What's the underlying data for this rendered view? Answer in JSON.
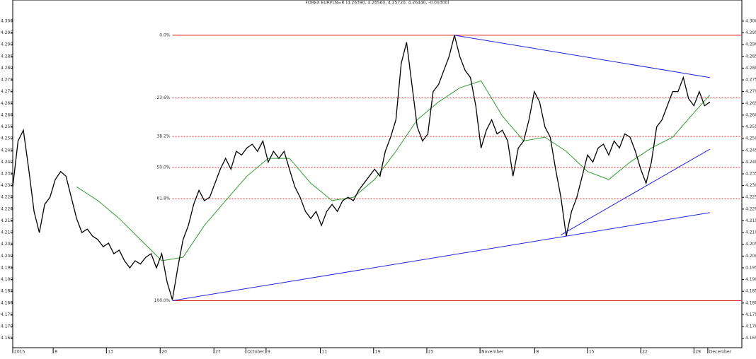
{
  "chart_data": {
    "type": "line",
    "title": "FOREX EURPLN=R (4.26390, 4.26560, 4.25720, 4.26440, -0.00300)",
    "xlim": [
      0,
      137
    ],
    "xticks": [
      {
        "value": 0,
        "label": "2015"
      },
      {
        "value": 7.6,
        "label": "8"
      },
      {
        "value": 17.6,
        "label": "13"
      },
      {
        "value": 27.7,
        "label": "20"
      },
      {
        "value": 37.8,
        "label": "27"
      },
      {
        "value": 43.8,
        "label": "October"
      },
      {
        "value": 47.6,
        "label": "9"
      },
      {
        "value": 57.8,
        "label": "11"
      },
      {
        "value": 67.8,
        "label": "19"
      },
      {
        "value": 77.8,
        "label": "25"
      },
      {
        "value": 87.8,
        "label": "November"
      },
      {
        "value": 98.1,
        "label": "8"
      },
      {
        "value": 108,
        "label": "15"
      },
      {
        "value": 118,
        "label": "22"
      },
      {
        "value": 128,
        "label": "29"
      },
      {
        "value": 130.6,
        "label": "December"
      }
    ],
    "ylim": [
      4.161,
      4.309
    ],
    "yticks": [
      {
        "value": 4.165,
        "label": "4.165"
      },
      {
        "value": 4.17,
        "label": "4.170"
      },
      {
        "value": 4.175,
        "label": "4.175"
      },
      {
        "value": 4.18,
        "label": "4.180"
      },
      {
        "value": 4.185,
        "label": "4.185"
      },
      {
        "value": 4.19,
        "label": "4.190"
      },
      {
        "value": 4.195,
        "label": "4.195"
      },
      {
        "value": 4.2,
        "label": "4.200"
      },
      {
        "value": 4.205,
        "label": "4.205"
      },
      {
        "value": 4.21,
        "label": "4.210"
      },
      {
        "value": 4.215,
        "label": "4.215"
      },
      {
        "value": 4.22,
        "label": "4.220"
      },
      {
        "value": 4.225,
        "label": "4.225"
      },
      {
        "value": 4.23,
        "label": "4.230"
      },
      {
        "value": 4.235,
        "label": "4.235"
      },
      {
        "value": 4.24,
        "label": "4.240"
      },
      {
        "value": 4.245,
        "label": "4.245"
      },
      {
        "value": 4.25,
        "label": "4.250"
      },
      {
        "value": 4.255,
        "label": "4.255"
      },
      {
        "value": 4.26,
        "label": "4.260"
      },
      {
        "value": 4.265,
        "label": "4.265"
      },
      {
        "value": 4.27,
        "label": "4.270"
      },
      {
        "value": 4.275,
        "label": "4.275"
      },
      {
        "value": 4.28,
        "label": "4.280"
      },
      {
        "value": 4.285,
        "label": "4.285"
      },
      {
        "value": 4.29,
        "label": "4.290"
      },
      {
        "value": 4.295,
        "label": "4.295"
      },
      {
        "value": 4.3,
        "label": "4.300"
      }
    ],
    "series": [
      {
        "name": "EURPLN=R",
        "color": "#000000",
        "values": [
          4.2295,
          4.249,
          4.2536,
          4.237,
          4.219,
          4.21,
          4.222,
          4.225,
          4.2326,
          4.236,
          4.234,
          4.225,
          4.216,
          4.21,
          4.2115,
          4.2085,
          4.207,
          4.204,
          4.2055,
          4.201,
          4.2025,
          4.198,
          4.195,
          4.198,
          4.1966,
          4.1995,
          4.201,
          4.195,
          4.201,
          4.189,
          4.1814,
          4.195,
          4.207,
          4.213,
          4.222,
          4.228,
          4.2236,
          4.225,
          4.231,
          4.237,
          4.2416,
          4.237,
          4.2446,
          4.243,
          4.246,
          4.2476,
          4.2446,
          4.249,
          4.24,
          4.2446,
          4.2416,
          4.2446,
          4.237,
          4.2295,
          4.225,
          4.219,
          4.216,
          4.219,
          4.213,
          4.219,
          4.222,
          4.219,
          4.2236,
          4.225,
          4.2236,
          4.228,
          4.231,
          4.234,
          4.237,
          4.234,
          4.2446,
          4.2506,
          4.258,
          4.282,
          4.291,
          4.273,
          4.255,
          4.249,
          4.252,
          4.27,
          4.273,
          4.279,
          4.285,
          4.294,
          4.285,
          4.279,
          4.276,
          4.264,
          4.246,
          4.2536,
          4.258,
          4.252,
          4.2536,
          4.249,
          4.234,
          4.246,
          4.249,
          4.258,
          4.27,
          4.2656,
          4.255,
          4.2506,
          4.237,
          4.225,
          4.2085,
          4.219,
          4.225,
          4.234,
          4.243,
          4.24,
          4.246,
          4.2476,
          4.243,
          4.249,
          4.246,
          4.252,
          4.2506,
          4.2446,
          4.237,
          4.231,
          4.24,
          4.255,
          4.258,
          4.264,
          4.27,
          4.27,
          4.276,
          4.267,
          4.264,
          4.27,
          4.264,
          4.2656
        ]
      },
      {
        "name": "MA",
        "color": "#2e9e2e",
        "x": [
          12,
          16,
          20,
          24,
          28,
          32,
          36,
          40,
          44,
          48,
          52,
          56,
          60,
          64,
          68,
          72,
          76,
          80,
          84,
          88,
          92,
          96,
          100,
          104,
          108,
          112,
          116,
          120,
          124,
          128,
          131
        ],
        "values": [
          4.2295,
          4.2236,
          4.216,
          4.207,
          4.198,
          4.1995,
          4.213,
          4.2236,
          4.234,
          4.2416,
          4.2416,
          4.231,
          4.2236,
          4.225,
          4.2326,
          4.2446,
          4.258,
          4.2656,
          4.2716,
          4.2746,
          4.2596,
          4.249,
          4.2506,
          4.2446,
          4.236,
          4.2326,
          4.24,
          4.246,
          4.2506,
          4.261,
          4.2686
        ]
      }
    ],
    "fibonacci": {
      "color": "#e02020",
      "start": 30,
      "levels": [
        {
          "label": "0.0%",
          "value": 4.294
        },
        {
          "label": "23.6%",
          "value": 4.2673
        },
        {
          "label": "38.2%",
          "value": 4.2509
        },
        {
          "label": "50.0%",
          "value": 4.2377
        },
        {
          "label": "61.8%",
          "value": 4.2244
        },
        {
          "label": "100.0%",
          "value": 4.181
        }
      ]
    },
    "trendlines": {
      "color": "#2020e0",
      "lines": [
        {
          "x": [
            83,
            131
          ],
          "y": [
            4.294,
            4.276
          ]
        },
        {
          "x": [
            30,
            131
          ],
          "y": [
            4.181,
            4.2185
          ]
        },
        {
          "x": [
            103,
            131
          ],
          "y": [
            4.209,
            4.2455
          ]
        }
      ]
    }
  }
}
